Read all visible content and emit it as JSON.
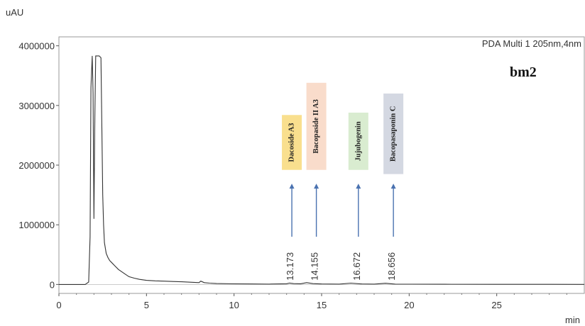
{
  "chart_data": {
    "type": "line",
    "ylabel": "uAU",
    "xlabel": "min",
    "channel_label": "PDA Multi 1 205nm,4nm",
    "sample_label": "bm2",
    "xlim": [
      0,
      30
    ],
    "ylim": [
      -150000,
      4150000
    ],
    "x_ticks": [
      0,
      5,
      10,
      15,
      20,
      25
    ],
    "y_ticks": [
      0,
      1000000,
      2000000,
      3000000,
      4000000
    ],
    "x_tick_labels": [
      "0",
      "5",
      "10",
      "15",
      "20",
      "25"
    ],
    "y_tick_labels": [
      "0",
      "1000000",
      "2000000",
      "3000000",
      "4000000"
    ],
    "grid": false,
    "series": [
      {
        "color": "#333333",
        "x": [
          0,
          1.5,
          1.7,
          1.78,
          1.83,
          1.9,
          1.95,
          2.0,
          2.05,
          2.1,
          2.15,
          2.2,
          2.3,
          2.4,
          2.45,
          2.5,
          2.55,
          2.6,
          2.7,
          2.8,
          2.9,
          3.0,
          3.2,
          3.4,
          3.6,
          3.8,
          4.0,
          4.3,
          4.6,
          5.0,
          5.5,
          6.0,
          6.5,
          7.0,
          7.5,
          8.0,
          8.1,
          8.3,
          8.6,
          9.0,
          10.0,
          11.0,
          12.0,
          13.0,
          13.17,
          13.4,
          13.8,
          14.15,
          14.5,
          15.0,
          16.0,
          16.67,
          17.3,
          18.0,
          18.65,
          19.2,
          20.0,
          22.0,
          25.0,
          28.0,
          30.0
        ],
        "y": [
          0,
          0,
          40000,
          800000,
          3300000,
          3830000,
          3200000,
          1100000,
          2800000,
          3830000,
          3830000,
          3830000,
          3830000,
          3800000,
          2700000,
          1500000,
          1000000,
          700000,
          520000,
          450000,
          400000,
          370000,
          310000,
          250000,
          210000,
          170000,
          130000,
          105000,
          85000,
          68000,
          60000,
          55000,
          50000,
          45000,
          38000,
          30000,
          55000,
          30000,
          22000,
          15000,
          10000,
          8000,
          6000,
          12000,
          24000,
          14000,
          12000,
          30000,
          14000,
          8000,
          6000,
          22000,
          8000,
          6000,
          20000,
          6000,
          4000,
          3000,
          2000,
          1500,
          1000
        ]
      }
    ],
    "peak_labels": [
      {
        "rt": 13.2,
        "label": "13.173"
      },
      {
        "rt": 14.6,
        "label": "14.155"
      },
      {
        "rt": 17.0,
        "label": "16.672"
      },
      {
        "rt": 19.0,
        "label": "18.656"
      }
    ],
    "compound_arrows": [
      {
        "rt": 13.3,
        "y_bottom": 800000,
        "y_top": 1690000
      },
      {
        "rt": 14.7,
        "y_bottom": 800000,
        "y_top": 1690000
      },
      {
        "rt": 17.1,
        "y_bottom": 800000,
        "y_top": 1690000
      },
      {
        "rt": 19.1,
        "y_bottom": 800000,
        "y_top": 1690000
      }
    ],
    "compound_boxes": [
      {
        "name": "Dacoside A3",
        "rt": 13.3,
        "y_bottom": 1920000,
        "y_top": 2840000,
        "color": "#f9df8e"
      },
      {
        "name": "Bacopaside II A3",
        "rt": 14.7,
        "y_bottom": 1920000,
        "y_top": 3380000,
        "color": "#f9dccb"
      },
      {
        "name": "Jujubogenin",
        "rt": 17.1,
        "y_bottom": 1920000,
        "y_top": 2880000,
        "color": "#d9ecd0"
      },
      {
        "name": "Bacopasaponin C",
        "rt": 19.1,
        "y_bottom": 1850000,
        "y_top": 3200000,
        "color": "#d4d8e2"
      }
    ]
  }
}
